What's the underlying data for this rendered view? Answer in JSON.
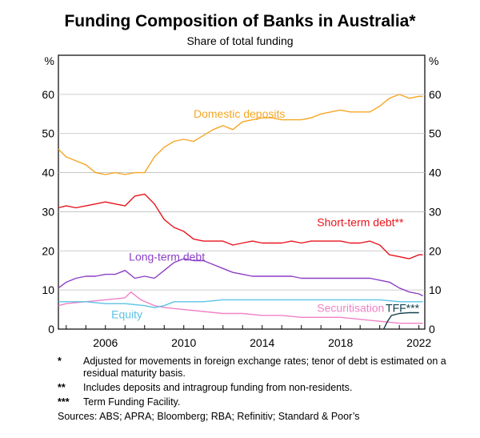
{
  "chart_data": {
    "type": "line",
    "title": "Funding Composition of Banks in Australia*",
    "subtitle": "Share of total funding",
    "ylabel_left": "%",
    "ylabel_right": "%",
    "ylim": [
      0,
      70
    ],
    "yticks": [
      0,
      10,
      20,
      30,
      40,
      50,
      60
    ],
    "xlim": [
      2003.6,
      2022.3
    ],
    "xticks": [
      "2006",
      "2010",
      "2014",
      "2018",
      "2022"
    ],
    "grid": true,
    "series": [
      {
        "name": "Domestic deposits",
        "color": "#f5a623",
        "points": [
          [
            2003.6,
            46
          ],
          [
            2004.0,
            44
          ],
          [
            2004.5,
            43
          ],
          [
            2005.0,
            42
          ],
          [
            2005.5,
            40
          ],
          [
            2006.0,
            39.5
          ],
          [
            2006.5,
            40
          ],
          [
            2007.0,
            39.5
          ],
          [
            2007.5,
            40
          ],
          [
            2008.0,
            40
          ],
          [
            2008.5,
            44
          ],
          [
            2009.0,
            46.5
          ],
          [
            2009.5,
            48
          ],
          [
            2010.0,
            48.5
          ],
          [
            2010.5,
            48
          ],
          [
            2011.0,
            49.5
          ],
          [
            2011.5,
            51
          ],
          [
            2012.0,
            52
          ],
          [
            2012.5,
            51
          ],
          [
            2013.0,
            53
          ],
          [
            2013.5,
            53.5
          ],
          [
            2014.0,
            54
          ],
          [
            2014.5,
            54
          ],
          [
            2015.0,
            53.5
          ],
          [
            2015.5,
            53.5
          ],
          [
            2016.0,
            53.5
          ],
          [
            2016.5,
            54
          ],
          [
            2017.0,
            55
          ],
          [
            2017.5,
            55.5
          ],
          [
            2018.0,
            56
          ],
          [
            2018.5,
            55.5
          ],
          [
            2019.0,
            55.5
          ],
          [
            2019.5,
            55.5
          ],
          [
            2020.0,
            57
          ],
          [
            2020.5,
            59
          ],
          [
            2021.0,
            60
          ],
          [
            2021.5,
            59
          ],
          [
            2022.0,
            59.5
          ],
          [
            2022.2,
            59.5
          ]
        ]
      },
      {
        "name": "Short-term debt**",
        "color": "#e8141c",
        "points": [
          [
            2003.6,
            31
          ],
          [
            2004.0,
            31.5
          ],
          [
            2004.5,
            31
          ],
          [
            2005.0,
            31.5
          ],
          [
            2005.5,
            32
          ],
          [
            2006.0,
            32.5
          ],
          [
            2006.5,
            32
          ],
          [
            2007.0,
            31.5
          ],
          [
            2007.5,
            34
          ],
          [
            2008.0,
            34.5
          ],
          [
            2008.5,
            32
          ],
          [
            2009.0,
            28
          ],
          [
            2009.5,
            26
          ],
          [
            2010.0,
            25
          ],
          [
            2010.5,
            23
          ],
          [
            2011.0,
            22.5
          ],
          [
            2011.5,
            22.5
          ],
          [
            2012.0,
            22.5
          ],
          [
            2012.5,
            21.5
          ],
          [
            2013.0,
            22
          ],
          [
            2013.5,
            22.5
          ],
          [
            2014.0,
            22
          ],
          [
            2014.5,
            22
          ],
          [
            2015.0,
            22
          ],
          [
            2015.5,
            22.5
          ],
          [
            2016.0,
            22
          ],
          [
            2016.5,
            22.5
          ],
          [
            2017.0,
            22.5
          ],
          [
            2017.5,
            22.5
          ],
          [
            2018.0,
            22.5
          ],
          [
            2018.5,
            22
          ],
          [
            2019.0,
            22
          ],
          [
            2019.5,
            22.5
          ],
          [
            2020.0,
            21.5
          ],
          [
            2020.5,
            19
          ],
          [
            2021.0,
            18.5
          ],
          [
            2021.5,
            18
          ],
          [
            2022.0,
            19
          ],
          [
            2022.2,
            19
          ]
        ]
      },
      {
        "name": "Long-term debt",
        "color": "#8b3fc6",
        "points": [
          [
            2003.6,
            10.5
          ],
          [
            2004.0,
            12
          ],
          [
            2004.5,
            13
          ],
          [
            2005.0,
            13.5
          ],
          [
            2005.5,
            13.5
          ],
          [
            2006.0,
            14
          ],
          [
            2006.5,
            14
          ],
          [
            2007.0,
            15
          ],
          [
            2007.5,
            13
          ],
          [
            2008.0,
            13.5
          ],
          [
            2008.5,
            13
          ],
          [
            2009.0,
            15
          ],
          [
            2009.5,
            17
          ],
          [
            2010.0,
            18
          ],
          [
            2010.5,
            17.5
          ],
          [
            2011.0,
            17.5
          ],
          [
            2011.5,
            16.5
          ],
          [
            2012.0,
            15.5
          ],
          [
            2012.5,
            14.5
          ],
          [
            2013.0,
            14
          ],
          [
            2013.5,
            13.5
          ],
          [
            2014.0,
            13.5
          ],
          [
            2014.5,
            13.5
          ],
          [
            2015.0,
            13.5
          ],
          [
            2015.5,
            13.5
          ],
          [
            2016.0,
            13
          ],
          [
            2016.5,
            13
          ],
          [
            2017.0,
            13
          ],
          [
            2017.5,
            13
          ],
          [
            2018.0,
            13
          ],
          [
            2018.5,
            13
          ],
          [
            2019.0,
            13
          ],
          [
            2019.5,
            13
          ],
          [
            2020.0,
            12.5
          ],
          [
            2020.5,
            12
          ],
          [
            2021.0,
            10.5
          ],
          [
            2021.5,
            9.5
          ],
          [
            2022.0,
            9
          ],
          [
            2022.2,
            8.5
          ]
        ]
      },
      {
        "name": "Securitisation",
        "color": "#f082c8",
        "points": [
          [
            2003.6,
            6
          ],
          [
            2004.0,
            6.5
          ],
          [
            2005.0,
            7
          ],
          [
            2006.0,
            7.5
          ],
          [
            2007.0,
            8
          ],
          [
            2007.3,
            9.5
          ],
          [
            2007.8,
            7.5
          ],
          [
            2008.5,
            6
          ],
          [
            2009.0,
            5.5
          ],
          [
            2010.0,
            5
          ],
          [
            2011.0,
            4.5
          ],
          [
            2012.0,
            4
          ],
          [
            2013.0,
            4
          ],
          [
            2014.0,
            3.5
          ],
          [
            2015.0,
            3.5
          ],
          [
            2016.0,
            3
          ],
          [
            2017.0,
            3
          ],
          [
            2018.0,
            3
          ],
          [
            2019.0,
            2.5
          ],
          [
            2020.0,
            2
          ],
          [
            2021.0,
            1.5
          ],
          [
            2022.0,
            1.5
          ],
          [
            2022.2,
            1.5
          ]
        ]
      },
      {
        "name": "Equity",
        "color": "#5bc3e6",
        "points": [
          [
            2003.6,
            7
          ],
          [
            2004.0,
            7
          ],
          [
            2005.0,
            7
          ],
          [
            2006.0,
            6.5
          ],
          [
            2007.0,
            6.5
          ],
          [
            2008.0,
            6
          ],
          [
            2008.5,
            5.5
          ],
          [
            2009.0,
            6
          ],
          [
            2009.5,
            7
          ],
          [
            2010.0,
            7
          ],
          [
            2011.0,
            7
          ],
          [
            2012.0,
            7.5
          ],
          [
            2013.0,
            7.5
          ],
          [
            2014.0,
            7.5
          ],
          [
            2015.0,
            7.5
          ],
          [
            2016.0,
            7.5
          ],
          [
            2017.0,
            7.5
          ],
          [
            2018.0,
            7.5
          ],
          [
            2019.0,
            7.5
          ],
          [
            2020.0,
            7.5
          ],
          [
            2021.0,
            7
          ],
          [
            2022.0,
            7
          ],
          [
            2022.2,
            7
          ]
        ]
      },
      {
        "name": "TFF***",
        "color": "#14404f",
        "points": [
          [
            2020.2,
            0
          ],
          [
            2020.4,
            2
          ],
          [
            2020.6,
            3.5
          ],
          [
            2021.0,
            4
          ],
          [
            2021.5,
            4.2
          ],
          [
            2022.0,
            4.2
          ]
        ]
      }
    ],
    "annotations": [
      {
        "text": "Domestic deposits",
        "series": "Domestic deposits",
        "x": 2010.5,
        "y": 54
      },
      {
        "text": "Short-term debt**",
        "series": "Short-term debt**",
        "x": 2016.8,
        "y": 26.3
      },
      {
        "text": "Long-term debt",
        "series": "Long-term debt",
        "x": 2007.2,
        "y": 17.5
      },
      {
        "text": "Securitisation",
        "series": "Securitisation",
        "x": 2016.8,
        "y": 4.4
      },
      {
        "text": "Equity",
        "series": "Equity",
        "x": 2006.3,
        "y": 2.8
      },
      {
        "text": "TFF***",
        "series": "TFF***",
        "x": 2020.3,
        "y": 4.4
      }
    ]
  },
  "notes": [
    {
      "mark": "*",
      "text": "Adjusted for movements in foreign exchange rates; tenor of debt is estimated on a residual maturity basis."
    },
    {
      "mark": "**",
      "text": "Includes deposits and intragroup funding from non-residents."
    },
    {
      "mark": "***",
      "text": "Term Funding Facility."
    }
  ],
  "sources": "Sources: ABS; APRA; Bloomberg; RBA; Refinitiv; Standard & Poor’s"
}
